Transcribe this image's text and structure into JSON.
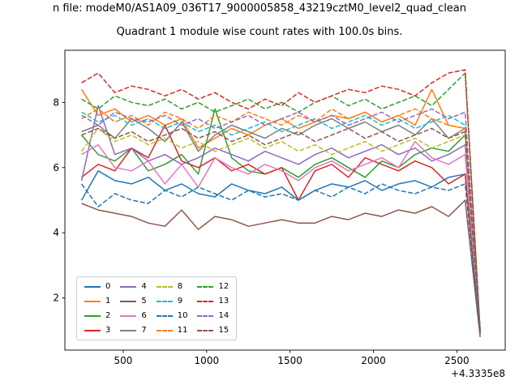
{
  "figure": {
    "suptitle": "n file: modeM0/AS1A09_036T17_9000005858_43219cztM0_level2_quad_clean",
    "background": "#ffffff"
  },
  "chart_data": {
    "type": "line",
    "title": "Quadrant 1 module wise count rates with 100.0s bins.",
    "xlabel": "",
    "ylabel": "",
    "x_offset_label": "+4.3335e8",
    "xlim": [
      150,
      2790
    ],
    "ylim": [
      0.4,
      9.6
    ],
    "xticks": [
      500,
      1000,
      1500,
      2000,
      2500
    ],
    "yticks": [
      2,
      4,
      6,
      8
    ],
    "grid": false,
    "legend": {
      "position": "lower left",
      "columns": 4
    },
    "x": [
      250,
      350,
      450,
      550,
      650,
      750,
      850,
      950,
      1050,
      1150,
      1250,
      1350,
      1450,
      1550,
      1650,
      1750,
      1850,
      1950,
      2050,
      2150,
      2250,
      2350,
      2450,
      2550,
      2640
    ],
    "series": [
      {
        "name": "0",
        "color": "#1f77b4",
        "style": "solid",
        "values": [
          5.0,
          5.9,
          5.6,
          5.5,
          5.7,
          5.3,
          5.5,
          5.2,
          5.1,
          5.5,
          5.3,
          5.2,
          5.4,
          5.0,
          5.3,
          5.5,
          5.4,
          5.6,
          5.3,
          5.5,
          5.6,
          5.4,
          5.7,
          5.8,
          0.9
        ]
      },
      {
        "name": "1",
        "color": "#ff7f0e",
        "style": "solid",
        "values": [
          8.4,
          7.6,
          7.8,
          7.4,
          7.6,
          7.3,
          7.5,
          6.6,
          6.9,
          7.2,
          7.0,
          7.3,
          7.5,
          7.2,
          7.4,
          7.6,
          7.5,
          7.7,
          7.4,
          7.6,
          7.3,
          8.4,
          7.3,
          7.2,
          1.0
        ]
      },
      {
        "name": "2",
        "color": "#2ca02c",
        "style": "solid",
        "values": [
          7.0,
          6.4,
          6.2,
          6.6,
          5.9,
          6.1,
          6.4,
          5.8,
          7.8,
          6.3,
          5.9,
          5.8,
          6.0,
          5.7,
          6.1,
          6.3,
          6.0,
          5.7,
          6.2,
          6.0,
          6.4,
          6.6,
          6.5,
          7.0,
          0.9
        ]
      },
      {
        "name": "3",
        "color": "#d62728",
        "style": "solid",
        "values": [
          5.7,
          6.1,
          5.9,
          6.6,
          6.3,
          7.3,
          6.2,
          6.0,
          6.3,
          5.9,
          6.1,
          5.8,
          6.0,
          5.0,
          5.9,
          6.1,
          5.7,
          6.3,
          6.1,
          5.9,
          6.2,
          6.0,
          5.5,
          5.8,
          0.9
        ]
      },
      {
        "name": "4",
        "color": "#9467bd",
        "style": "solid",
        "values": [
          5.6,
          7.9,
          6.4,
          6.6,
          6.2,
          6.4,
          6.1,
          6.3,
          6.6,
          6.4,
          6.2,
          6.5,
          6.3,
          6.1,
          6.4,
          6.6,
          6.3,
          6.5,
          6.7,
          6.4,
          6.6,
          6.2,
          6.4,
          6.7,
          0.9
        ]
      },
      {
        "name": "5",
        "color": "#8c564b",
        "style": "solid",
        "values": [
          4.9,
          4.7,
          4.6,
          4.5,
          4.3,
          4.2,
          4.7,
          4.1,
          4.5,
          4.4,
          4.2,
          4.3,
          4.4,
          4.3,
          4.3,
          4.5,
          4.4,
          4.6,
          4.5,
          4.7,
          4.6,
          4.8,
          4.5,
          5.0,
          0.8
        ]
      },
      {
        "name": "6",
        "color": "#e377c2",
        "style": "solid",
        "values": [
          6.4,
          6.7,
          6.0,
          5.9,
          6.2,
          5.5,
          6.1,
          5.4,
          6.3,
          6.0,
          5.8,
          6.1,
          5.9,
          5.6,
          6.0,
          6.2,
          5.9,
          6.1,
          6.3,
          6.0,
          6.8,
          6.3,
          6.1,
          6.4,
          0.9
        ]
      },
      {
        "name": "7",
        "color": "#7f7f7f",
        "style": "solid",
        "values": [
          7.1,
          7.3,
          6.9,
          7.5,
          7.2,
          6.8,
          7.4,
          6.5,
          7.0,
          7.3,
          7.1,
          6.9,
          7.2,
          7.0,
          7.3,
          7.5,
          7.2,
          7.4,
          7.1,
          7.3,
          7.0,
          7.5,
          6.9,
          7.2,
          0.9
        ]
      },
      {
        "name": "8",
        "color": "#bcbd22",
        "style": "dashed",
        "values": [
          6.5,
          7.2,
          6.8,
          7.0,
          6.7,
          6.9,
          6.6,
          6.8,
          6.5,
          6.7,
          6.9,
          6.6,
          6.8,
          6.5,
          6.7,
          6.4,
          6.6,
          6.8,
          6.5,
          6.7,
          6.9,
          6.6,
          6.8,
          7.0,
          0.9
        ]
      },
      {
        "name": "9",
        "color": "#17becf",
        "style": "dashed",
        "values": [
          7.7,
          7.4,
          7.6,
          7.3,
          7.5,
          7.2,
          7.4,
          7.1,
          7.3,
          7.0,
          7.2,
          7.4,
          7.1,
          7.3,
          7.5,
          7.2,
          7.4,
          7.6,
          7.3,
          7.5,
          7.2,
          7.4,
          7.6,
          7.3,
          1.0
        ]
      },
      {
        "name": "10",
        "color": "#1f77b4",
        "style": "dashed",
        "values": [
          5.5,
          4.8,
          5.2,
          5.0,
          4.9,
          5.3,
          5.1,
          5.4,
          5.2,
          5.0,
          5.3,
          5.1,
          5.2,
          5.0,
          5.3,
          5.1,
          5.4,
          5.2,
          5.5,
          5.3,
          5.2,
          5.4,
          5.3,
          5.5,
          0.9
        ]
      },
      {
        "name": "11",
        "color": "#ff7f0e",
        "style": "dashed",
        "values": [
          7.5,
          7.8,
          7.4,
          7.6,
          7.3,
          7.7,
          7.5,
          7.2,
          7.6,
          7.4,
          7.7,
          7.5,
          7.3,
          7.6,
          7.4,
          7.8,
          7.5,
          7.7,
          7.4,
          7.6,
          7.8,
          7.5,
          7.3,
          7.2,
          1.0
        ]
      },
      {
        "name": "12",
        "color": "#2ca02c",
        "style": "dashed",
        "values": [
          8.1,
          7.8,
          8.2,
          8.0,
          7.9,
          8.1,
          7.8,
          8.0,
          7.7,
          7.9,
          8.1,
          7.8,
          8.0,
          7.7,
          8.0,
          8.2,
          7.9,
          8.1,
          7.8,
          8.0,
          8.2,
          7.9,
          8.4,
          8.9,
          1.0
        ]
      },
      {
        "name": "13",
        "color": "#d62728",
        "style": "dashed",
        "values": [
          8.6,
          8.9,
          8.3,
          8.5,
          8.4,
          8.2,
          8.4,
          8.1,
          8.3,
          8.0,
          7.8,
          8.1,
          7.9,
          8.3,
          8.0,
          8.2,
          8.4,
          8.3,
          8.5,
          8.4,
          8.2,
          8.6,
          8.9,
          9.0,
          1.0
        ]
      },
      {
        "name": "14",
        "color": "#9467bd",
        "style": "dashed",
        "values": [
          7.6,
          7.3,
          7.7,
          7.5,
          7.4,
          7.6,
          7.3,
          7.5,
          7.2,
          7.4,
          7.6,
          7.3,
          7.5,
          7.7,
          7.4,
          7.6,
          7.3,
          7.5,
          7.7,
          7.4,
          7.6,
          7.8,
          7.5,
          7.7,
          1.0
        ]
      },
      {
        "name": "15",
        "color": "#8c564b",
        "style": "dashed",
        "values": [
          7.0,
          7.2,
          6.9,
          7.1,
          6.8,
          7.0,
          7.2,
          6.9,
          7.1,
          6.8,
          7.0,
          6.7,
          6.9,
          7.1,
          6.8,
          7.0,
          7.2,
          6.9,
          7.1,
          6.8,
          7.0,
          7.2,
          6.9,
          7.1,
          0.9
        ]
      }
    ]
  }
}
